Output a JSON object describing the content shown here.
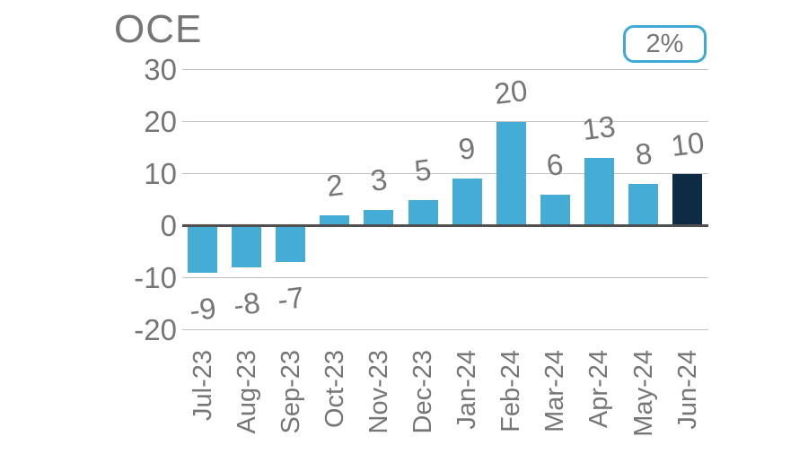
{
  "title": "OCE",
  "badge": {
    "label": "2%"
  },
  "colors": {
    "bar": "#45ACD5",
    "bar_highlight": "#0D2B45",
    "badge_border": "#3FA9D4",
    "text": "#767676",
    "gridline": "#C2C2C2",
    "zero_line": "#4F4F4F"
  },
  "chart_data": {
    "type": "bar",
    "title": "OCE",
    "annotation": "2%",
    "categories": [
      "Jul-23",
      "Aug-23",
      "Sep-23",
      "Oct-23",
      "Nov-23",
      "Dec-23",
      "Jan-24",
      "Feb-24",
      "Mar-24",
      "Apr-24",
      "May-24",
      "Jun-24"
    ],
    "values": [
      -9,
      -8,
      -7,
      2,
      3,
      5,
      9,
      20,
      6,
      13,
      8,
      10
    ],
    "yticks": [
      "30",
      "20",
      "10",
      "0",
      "-10",
      "-20"
    ],
    "ytick_values": [
      30,
      20,
      10,
      0,
      -10,
      -20
    ],
    "ylim": [
      -20,
      30
    ],
    "grid": true,
    "highlight_index": 11,
    "legend": null,
    "xlabel": "",
    "ylabel": ""
  }
}
